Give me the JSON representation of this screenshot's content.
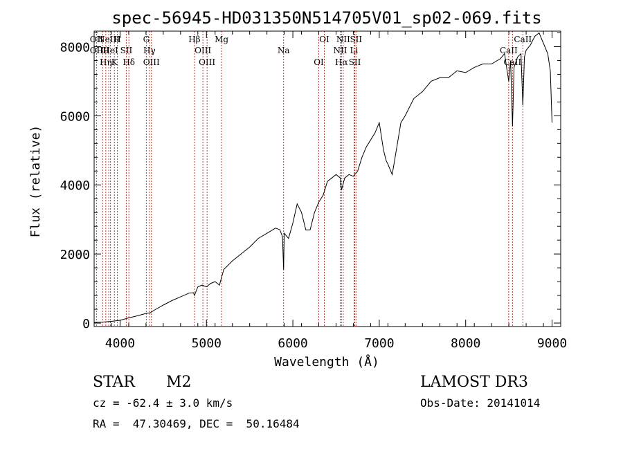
{
  "chart_data": {
    "type": "line",
    "title": "spec-56945-HD031350N514705V01_sp02-069.fits",
    "xlabel": "Wavelength (Å)",
    "ylabel": "Flux (relative)",
    "xlim": [
      3700,
      9100
    ],
    "ylim": [
      -100,
      8450
    ],
    "xticks": [
      4000,
      5000,
      6000,
      7000,
      8000,
      9000
    ],
    "yticks": [
      0,
      2000,
      4000,
      6000,
      8000
    ],
    "series": [
      {
        "name": "flux",
        "x": [
          3700,
          3800,
          3900,
          4000,
          4100,
          4200,
          4300,
          4350,
          4400,
          4500,
          4600,
          4700,
          4800,
          4850,
          4861,
          4900,
          4950,
          5000,
          5050,
          5100,
          5150,
          5200,
          5300,
          5400,
          5500,
          5600,
          5700,
          5800,
          5850,
          5880,
          5893,
          5900,
          5950,
          6000,
          6050,
          6100,
          6150,
          6200,
          6250,
          6300,
          6350,
          6400,
          6450,
          6500,
          6550,
          6563,
          6600,
          6650,
          6700,
          6750,
          6800,
          6850,
          6900,
          6950,
          7000,
          7050,
          7080,
          7100,
          7150,
          7200,
          7250,
          7300,
          7400,
          7500,
          7600,
          7700,
          7800,
          7900,
          8000,
          8100,
          8200,
          8300,
          8400,
          8450,
          8498,
          8520,
          8542,
          8560,
          8600,
          8640,
          8662,
          8680,
          8700,
          8750,
          8800,
          8850,
          8900,
          8950,
          8980,
          9000
        ],
        "y": [
          20,
          30,
          50,
          80,
          150,
          210,
          280,
          300,
          380,
          520,
          650,
          760,
          870,
          880,
          800,
          1050,
          1100,
          1050,
          1150,
          1200,
          1100,
          1550,
          1800,
          2000,
          2200,
          2450,
          2600,
          2750,
          2700,
          2500,
          1550,
          2600,
          2450,
          2900,
          3450,
          3200,
          2700,
          2700,
          3200,
          3500,
          3700,
          4100,
          4200,
          4300,
          4200,
          3850,
          4200,
          4300,
          4250,
          4400,
          4800,
          5100,
          5300,
          5500,
          5800,
          5000,
          4700,
          4600,
          4300,
          5050,
          5800,
          6000,
          6500,
          6700,
          7000,
          7100,
          7100,
          7300,
          7250,
          7400,
          7500,
          7500,
          7650,
          7800,
          7000,
          7600,
          5700,
          7400,
          7700,
          7800,
          6300,
          7700,
          7900,
          8050,
          8300,
          8400,
          8100,
          7800,
          7300,
          5800
        ]
      }
    ],
    "line_markers": [
      {
        "w": 3727,
        "labels": [
          "OII",
          "OII"
        ]
      },
      {
        "w": 3798,
        "labels": [
          "Hθ"
        ]
      },
      {
        "w": 3835,
        "labels": [
          "Hη"
        ]
      },
      {
        "w": 3869,
        "labels": [
          "NeIII"
        ]
      },
      {
        "w": 3889,
        "labels": [
          "HeI"
        ]
      },
      {
        "w": 3934,
        "labels": [
          "K"
        ]
      },
      {
        "w": 3969,
        "labels": [
          "H"
        ]
      },
      {
        "w": 4072,
        "labels": [
          "SII"
        ]
      },
      {
        "w": 4102,
        "labels": [
          "Hδ"
        ]
      },
      {
        "w": 4304,
        "labels": [
          "G"
        ]
      },
      {
        "w": 4340,
        "labels": [
          "Hγ"
        ]
      },
      {
        "w": 4363,
        "labels": [
          "OIII"
        ]
      },
      {
        "w": 4861,
        "labels": [
          "Hβ"
        ]
      },
      {
        "w": 4959,
        "labels": [
          "OIII"
        ]
      },
      {
        "w": 5007,
        "labels": [
          "OIII"
        ]
      },
      {
        "w": 5175,
        "labels": [
          "Mg"
        ]
      },
      {
        "w": 5893,
        "labels": [
          "Na"
        ]
      },
      {
        "w": 6300,
        "labels": [
          "OI"
        ]
      },
      {
        "w": 6364,
        "labels": [
          "OI"
        ]
      },
      {
        "w": 6548,
        "labels": [
          "NII"
        ]
      },
      {
        "w": 6563,
        "labels": [
          "Hα"
        ]
      },
      {
        "w": 6583,
        "labels": [
          "NII"
        ]
      },
      {
        "w": 6708,
        "labels": [
          "Li"
        ]
      },
      {
        "w": 6717,
        "labels": [
          "SII"
        ]
      },
      {
        "w": 6731,
        "labels": [
          "SII"
        ]
      },
      {
        "w": 8498,
        "labels": [
          "CaII"
        ]
      },
      {
        "w": 8542,
        "labels": [
          "CaII"
        ]
      },
      {
        "w": 8662,
        "labels": [
          "CaII"
        ]
      }
    ]
  },
  "footer": {
    "class_label": "STAR",
    "subclass": "M2",
    "survey": "LAMOST DR3",
    "cz": "cz = -62.4 ± 3.0 km/s",
    "obs_date": "Obs-Date: 20141014",
    "coords": "RA =  47.30469, DEC =  50.16484"
  }
}
